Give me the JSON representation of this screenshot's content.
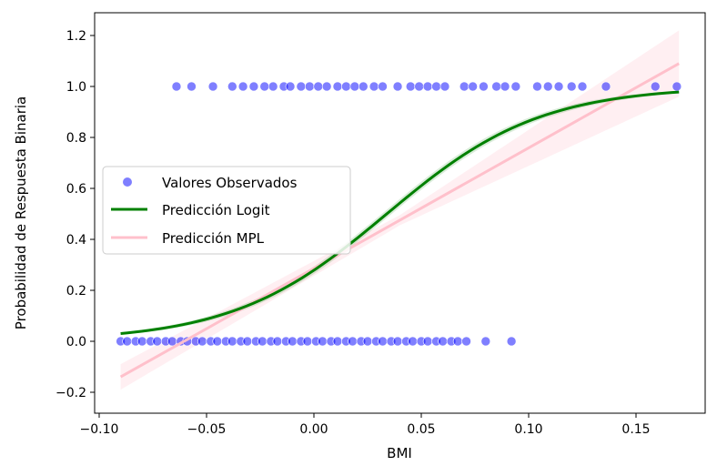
{
  "chart_data": {
    "type": "scatter",
    "title": "",
    "xlabel": "BMI",
    "ylabel": "Probabilidad de Respuesta Binaria",
    "xlim": [
      -0.1,
      0.185
    ],
    "ylim": [
      -0.26,
      1.29
    ],
    "xticks": [
      -0.1,
      -0.05,
      0.0,
      0.05,
      0.1,
      0.15
    ],
    "xtick_labels": [
      "−0.10",
      "−0.05",
      "0.00",
      "0.05",
      "0.10",
      "0.15"
    ],
    "yticks": [
      -0.2,
      0.0,
      0.2,
      0.4,
      0.6,
      0.8,
      1.0,
      1.2
    ],
    "ytick_labels": [
      "−0.2",
      "0.0",
      "0.2",
      "0.4",
      "0.6",
      "0.8",
      "1.0",
      "1.2"
    ],
    "grid": false,
    "legend_position": "center-left",
    "series": [
      {
        "name": "Valores Observados",
        "kind": "scatter",
        "color": "#0000ff",
        "points_y1_x": [
          -0.064,
          -0.057,
          -0.047,
          -0.038,
          -0.033,
          -0.028,
          -0.023,
          -0.019,
          -0.014,
          -0.011,
          -0.006,
          -0.002,
          0.002,
          0.006,
          0.011,
          0.015,
          0.019,
          0.023,
          0.028,
          0.032,
          0.039,
          0.045,
          0.049,
          0.053,
          0.057,
          0.061,
          0.07,
          0.074,
          0.079,
          0.085,
          0.089,
          0.094,
          0.104,
          0.109,
          0.114,
          0.12,
          0.125,
          0.136,
          0.159,
          0.169
        ],
        "points_y0_x": [
          -0.09,
          -0.087,
          -0.083,
          -0.08,
          -0.076,
          -0.073,
          -0.069,
          -0.066,
          -0.062,
          -0.059,
          -0.055,
          -0.052,
          -0.048,
          -0.045,
          -0.041,
          -0.038,
          -0.034,
          -0.031,
          -0.027,
          -0.024,
          -0.02,
          -0.017,
          -0.013,
          -0.01,
          -0.006,
          -0.003,
          0.001,
          0.004,
          0.008,
          0.011,
          0.015,
          0.018,
          0.022,
          0.025,
          0.029,
          0.032,
          0.036,
          0.039,
          0.043,
          0.046,
          0.05,
          0.053,
          0.057,
          0.06,
          0.064,
          0.067,
          0.071,
          0.08,
          0.092
        ]
      },
      {
        "name": "Predicción Logit",
        "kind": "logistic-curve",
        "color": "#008000",
        "intercept": -0.95,
        "slope": 28,
        "x_range": [
          -0.09,
          0.17
        ]
      },
      {
        "name": "Predicción MPL",
        "kind": "line",
        "color": "#ffc0cb",
        "intercept": 0.286,
        "slope": 4.73,
        "x_range": [
          -0.09,
          0.17
        ],
        "ci_halfwidth_left": 0.05,
        "ci_halfwidth_center": 0.02,
        "ci_halfwidth_right": 0.13
      }
    ]
  }
}
